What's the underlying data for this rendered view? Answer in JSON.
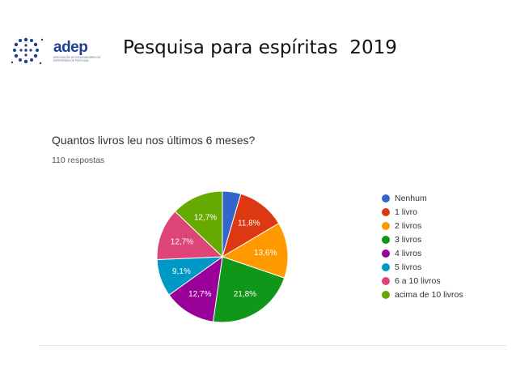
{
  "slide": {
    "title": "Pesquisa para espíritas  2019",
    "logo": {
      "name": "adep",
      "subtitle": "ASSOCIAÇÃO DE DIVULGADORES DO ESPIRITISMO DE PORTUGAL",
      "color": "#1d3f8f"
    }
  },
  "chart_data": {
    "type": "pie",
    "title": "Quantos livros leu nos últimos 6 meses?",
    "subtitle": "110 respostas",
    "legend_position": "right",
    "slices": [
      {
        "label": "Nenhum",
        "value": 4.5,
        "value_label": "",
        "color": "#3366cc"
      },
      {
        "label": "1 livro",
        "value": 11.8,
        "value_label": "11,8%",
        "color": "#dc3912"
      },
      {
        "label": "2 livros",
        "value": 13.6,
        "value_label": "13,6%",
        "color": "#ff9900"
      },
      {
        "label": "3 livros",
        "value": 21.8,
        "value_label": "21,8%",
        "color": "#109618"
      },
      {
        "label": "4 livros",
        "value": 12.7,
        "value_label": "12,7%",
        "color": "#990099"
      },
      {
        "label": "5 livros",
        "value": 9.1,
        "value_label": "9,1%",
        "color": "#0099c6"
      },
      {
        "label": "6 a 10 livros",
        "value": 12.7,
        "value_label": "12,7%",
        "color": "#dd4477"
      },
      {
        "label": "acima de 10 livros",
        "value": 12.7,
        "value_label": "12,7%",
        "color": "#66aa00"
      }
    ]
  }
}
